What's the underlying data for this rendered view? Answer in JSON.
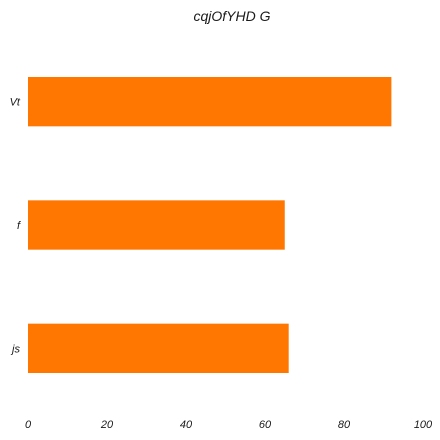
{
  "chart_data": {
    "type": "bar",
    "orientation": "horizontal",
    "title": "cqjOfYHD G",
    "xlabel": "",
    "ylabel": "",
    "categories": [
      "Vt",
      "f",
      "js"
    ],
    "values": [
      92,
      65,
      66
    ],
    "xlim": [
      0,
      100
    ],
    "xticks": [
      0,
      20,
      40,
      60,
      80,
      100
    ],
    "grid": false,
    "legend": "none",
    "bar_color": "#ff7700"
  }
}
